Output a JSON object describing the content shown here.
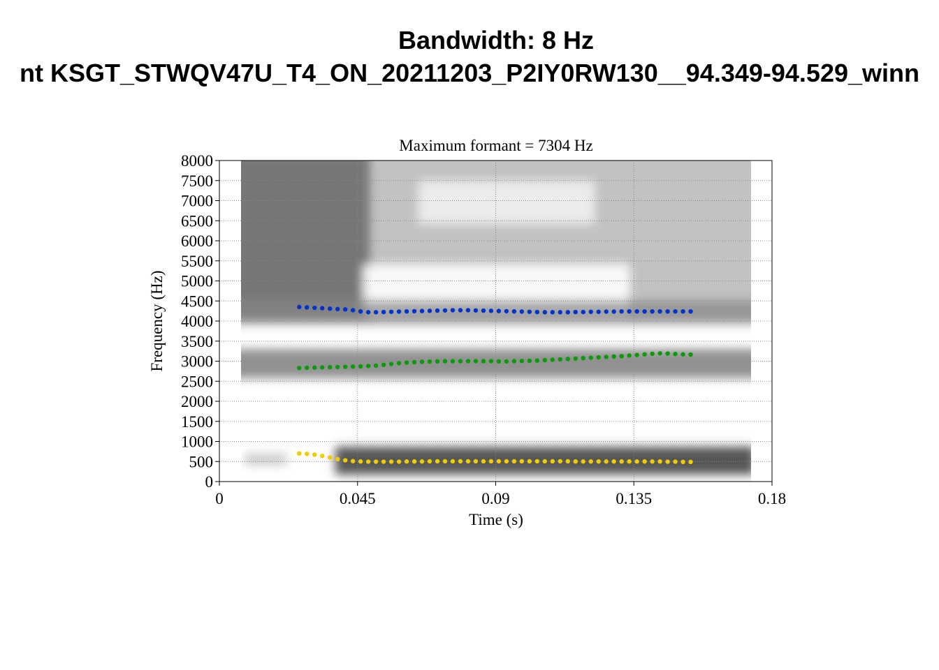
{
  "chart_data": {
    "type": "scatter",
    "title": "Bandwidth: 8 Hz",
    "subtitle": "nt KSGT_STWQV47U_T4_ON_20211203_P2IY0RW130__94.349-94.529_winn",
    "plot_title": "Maximum formant  =  7304 Hz",
    "x_label": "Time (s)",
    "y_label": "Frequency (Hz)",
    "xlim": [
      0,
      0.18
    ],
    "ylim": [
      0,
      8000
    ],
    "xticks": [
      0,
      0.045,
      0.09,
      0.135,
      0.18
    ],
    "yticks": [
      0,
      500,
      1000,
      1500,
      2000,
      2500,
      3000,
      3500,
      4000,
      4500,
      5000,
      5500,
      6000,
      6500,
      7000,
      7500,
      8000
    ],
    "grid": true,
    "x": [
      0.026,
      0.0285,
      0.031,
      0.0335,
      0.036,
      0.0385,
      0.041,
      0.0435,
      0.046,
      0.0485,
      0.051,
      0.0535,
      0.056,
      0.0585,
      0.061,
      0.0635,
      0.066,
      0.0685,
      0.071,
      0.0735,
      0.076,
      0.0785,
      0.081,
      0.0835,
      0.086,
      0.0885,
      0.091,
      0.0935,
      0.096,
      0.0985,
      0.101,
      0.1035,
      0.106,
      0.1085,
      0.111,
      0.1135,
      0.116,
      0.1185,
      0.121,
      0.1235,
      0.126,
      0.1285,
      0.131,
      0.1335,
      0.136,
      0.1385,
      0.141,
      0.1435,
      0.146,
      0.1485,
      0.151,
      0.1535
    ],
    "series": [
      {
        "color": "#f2cc00",
        "values": [
          700,
          690,
          670,
          640,
          600,
          560,
          530,
          510,
          500,
          495,
          495,
          495,
          495,
          495,
          500,
          500,
          500,
          505,
          505,
          505,
          505,
          505,
          505,
          505,
          505,
          505,
          505,
          505,
          505,
          505,
          505,
          505,
          505,
          505,
          505,
          505,
          500,
          500,
          500,
          500,
          500,
          500,
          500,
          500,
          500,
          500,
          500,
          500,
          495,
          495,
          490,
          490
        ]
      },
      {
        "color": "#0a9a0a",
        "values": [
          2830,
          2835,
          2840,
          2845,
          2850,
          2855,
          2860,
          2865,
          2870,
          2880,
          2890,
          2910,
          2930,
          2950,
          2965,
          2975,
          2985,
          2990,
          2995,
          3000,
          3000,
          3000,
          3000,
          3000,
          3000,
          3000,
          2995,
          2995,
          3000,
          3005,
          3010,
          3015,
          3025,
          3035,
          3045,
          3055,
          3065,
          3075,
          3085,
          3095,
          3105,
          3115,
          3125,
          3140,
          3155,
          3170,
          3185,
          3195,
          3190,
          3180,
          3170,
          3165
        ]
      },
      {
        "color": "#0033cc",
        "values": [
          4350,
          4340,
          4330,
          4320,
          4310,
          4300,
          4290,
          4270,
          4240,
          4220,
          4220,
          4225,
          4230,
          4235,
          4240,
          4245,
          4250,
          4255,
          4260,
          4265,
          4270,
          4270,
          4270,
          4265,
          4260,
          4255,
          4250,
          4245,
          4240,
          4235,
          4230,
          4225,
          4220,
          4220,
          4220,
          4220,
          4225,
          4225,
          4230,
          4230,
          4235,
          4235,
          4240,
          4240,
          4240,
          4240,
          4240,
          4240,
          4240,
          4240,
          4240,
          4240
        ]
      }
    ]
  }
}
